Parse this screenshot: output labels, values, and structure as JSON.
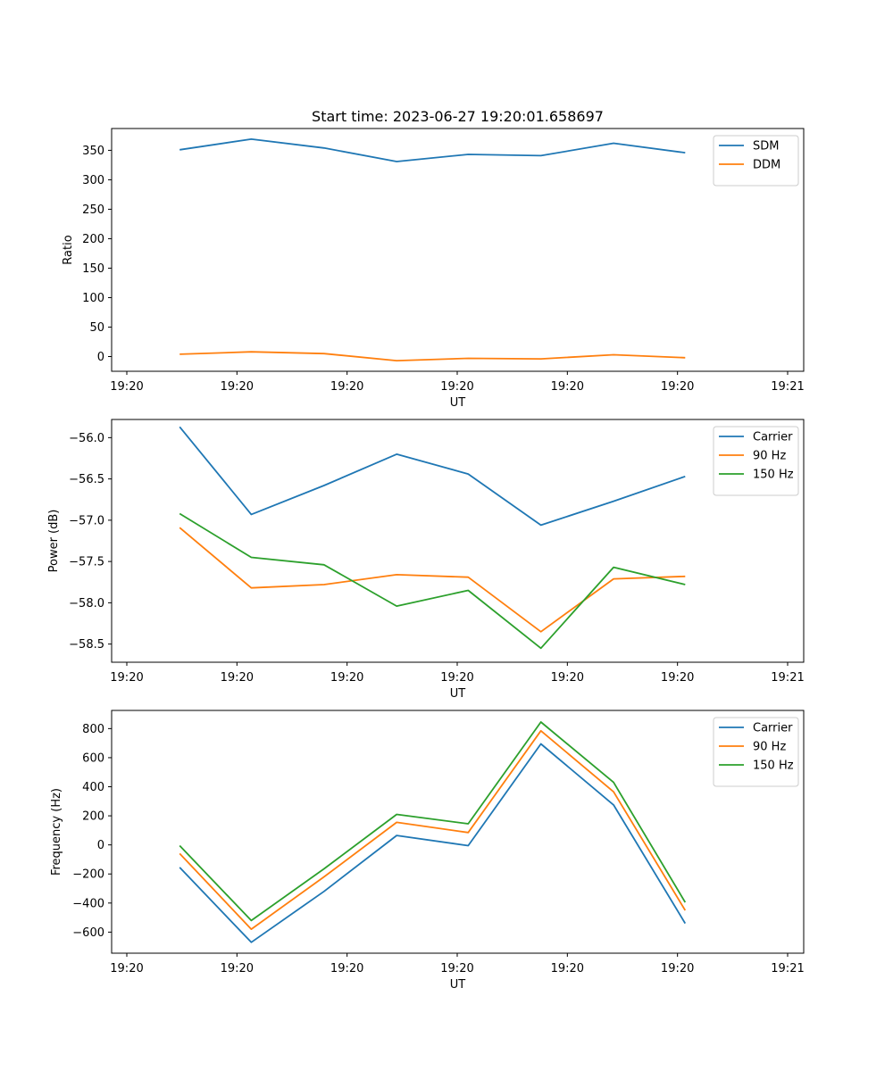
{
  "figure": {
    "title": "Start time: 2023-06-27 19:20:01.658697"
  },
  "chart_data": [
    {
      "type": "line",
      "xlabel": "UT",
      "ylabel": "Ratio",
      "x_tick_labels": [
        "19:20",
        "19:20",
        "19:20",
        "19:20",
        "19:20",
        "19:20",
        "19:21"
      ],
      "xlim": [
        0,
        6
      ],
      "ylim": [
        -25,
        387
      ],
      "y_ticks": [
        0,
        50,
        100,
        150,
        200,
        250,
        300,
        350
      ],
      "x": [
        0.48,
        1.13,
        1.79,
        2.45,
        3.1,
        3.76,
        4.42,
        5.07
      ],
      "series": [
        {
          "name": "SDM",
          "color": "#1f77b4",
          "values": [
            351,
            369,
            354,
            331,
            343,
            341,
            362,
            346
          ]
        },
        {
          "name": "DDM",
          "color": "#ff7f0e",
          "values": [
            4,
            8,
            5,
            -7,
            -3,
            -4,
            3,
            -2
          ]
        }
      ],
      "legend": "top-right",
      "grid": false
    },
    {
      "type": "line",
      "xlabel": "UT",
      "ylabel": "Power (dB)",
      "x_tick_labels": [
        "19:20",
        "19:20",
        "19:20",
        "19:20",
        "19:20",
        "19:20",
        "19:21"
      ],
      "xlim": [
        0,
        6
      ],
      "ylim": [
        -58.72,
        -55.78
      ],
      "y_ticks": [
        -58.5,
        -58.0,
        -57.5,
        -57.0,
        -56.5,
        -56.0
      ],
      "y_tick_labels": [
        "−58.5",
        "−58.0",
        "−57.5",
        "−57.0",
        "−56.5",
        "−56.0"
      ],
      "x": [
        0.48,
        1.13,
        1.79,
        2.45,
        3.1,
        3.76,
        4.42,
        5.07
      ],
      "series": [
        {
          "name": "Carrier",
          "color": "#1f77b4",
          "values": [
            -55.87,
            -56.93,
            -56.58,
            -56.2,
            -56.44,
            -57.06,
            -56.77,
            -56.47
          ]
        },
        {
          "name": "90 Hz",
          "color": "#ff7f0e",
          "values": [
            -57.09,
            -57.82,
            -57.78,
            -57.66,
            -57.69,
            -58.35,
            -57.71,
            -57.68
          ]
        },
        {
          "name": "150 Hz",
          "color": "#2ca02c",
          "values": [
            -56.92,
            -57.45,
            -57.54,
            -58.04,
            -57.85,
            -58.55,
            -57.57,
            -57.78
          ]
        }
      ],
      "legend": "top-right",
      "grid": false
    },
    {
      "type": "line",
      "xlabel": "UT",
      "ylabel": "Frequency (Hz)",
      "x_tick_labels": [
        "19:20",
        "19:20",
        "19:20",
        "19:20",
        "19:20",
        "19:20",
        "19:21"
      ],
      "xlim": [
        0,
        6
      ],
      "ylim": [
        -745,
        925
      ],
      "y_ticks": [
        -600,
        -400,
        -200,
        0,
        200,
        400,
        600,
        800
      ],
      "y_tick_labels": [
        "−600",
        "−400",
        "−200",
        "0",
        "200",
        "400",
        "600",
        "800"
      ],
      "x": [
        0.48,
        1.13,
        1.79,
        2.45,
        3.1,
        3.76,
        4.42,
        5.07
      ],
      "series": [
        {
          "name": "Carrier",
          "color": "#1f77b4",
          "values": [
            -155,
            -670,
            -320,
            65,
            -5,
            695,
            275,
            -540
          ]
        },
        {
          "name": "90 Hz",
          "color": "#ff7f0e",
          "values": [
            -60,
            -580,
            -220,
            155,
            85,
            785,
            365,
            -450
          ]
        },
        {
          "name": "150 Hz",
          "color": "#2ca02c",
          "values": [
            -5,
            -520,
            -165,
            210,
            145,
            845,
            430,
            -395
          ]
        }
      ],
      "legend": "top-right",
      "grid": false
    }
  ]
}
